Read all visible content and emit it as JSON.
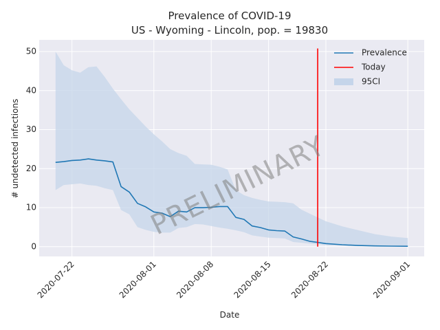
{
  "chart_data": {
    "type": "line",
    "title": "Prevalence of COVID-19",
    "subtitle": "US - Wyoming - Lincoln, pop. = 19830",
    "xlabel": "Date",
    "ylabel": "# undetected infections",
    "x_ticks": [
      "2020-07-22",
      "2020-08-01",
      "2020-08-08",
      "2020-08-15",
      "2020-08-22",
      "2020-09-01"
    ],
    "xlim": [
      "2020-07-18",
      "2020-09-03"
    ],
    "y_ticks": [
      "0",
      "10",
      "20",
      "30",
      "40",
      "50"
    ],
    "ylim": [
      -2.5,
      53
    ],
    "grid": true,
    "legend_position": "top-right",
    "legend": [
      "Prevalence",
      "Today",
      "95CI"
    ],
    "watermark": "PRELIMINARY",
    "colors": {
      "prevalence": "#1f77b4",
      "today": "#ff0000",
      "ci": "#c5d5ea",
      "background": "#eaeaf2",
      "grid": "#ffffff"
    },
    "today": "2020-08-21",
    "series": [
      {
        "name": "Prevalence",
        "x": [
          "2020-07-20",
          "2020-07-21",
          "2020-07-22",
          "2020-07-23",
          "2020-07-24",
          "2020-07-25",
          "2020-07-26",
          "2020-07-27",
          "2020-07-28",
          "2020-07-29",
          "2020-07-30",
          "2020-07-31",
          "2020-08-01",
          "2020-08-02",
          "2020-08-03",
          "2020-08-04",
          "2020-08-05",
          "2020-08-06",
          "2020-08-07",
          "2020-08-08",
          "2020-08-09",
          "2020-08-10",
          "2020-08-11",
          "2020-08-12",
          "2020-08-13",
          "2020-08-14",
          "2020-08-15",
          "2020-08-16",
          "2020-08-17",
          "2020-08-18",
          "2020-08-19",
          "2020-08-20",
          "2020-08-21",
          "2020-08-22",
          "2020-08-24",
          "2020-08-26",
          "2020-08-28",
          "2020-08-30",
          "2020-09-01"
        ],
        "y": [
          21.6,
          21.8,
          22.1,
          22.2,
          22.5,
          22.2,
          22.0,
          21.7,
          15.4,
          14.0,
          11.1,
          10.2,
          8.9,
          8.6,
          7.7,
          9.1,
          8.9,
          10.0,
          10.0,
          10.1,
          10.3,
          10.3,
          7.5,
          7.0,
          5.3,
          4.9,
          4.3,
          4.1,
          4.0,
          2.5,
          2.0,
          1.4,
          1.1,
          0.8,
          0.5,
          0.3,
          0.2,
          0.15,
          0.1
        ]
      },
      {
        "name": "95CI",
        "x": [
          "2020-07-20",
          "2020-07-21",
          "2020-07-22",
          "2020-07-23",
          "2020-07-24",
          "2020-07-25",
          "2020-07-26",
          "2020-07-27",
          "2020-07-28",
          "2020-07-29",
          "2020-07-30",
          "2020-07-31",
          "2020-08-01",
          "2020-08-02",
          "2020-08-03",
          "2020-08-04",
          "2020-08-05",
          "2020-08-06",
          "2020-08-07",
          "2020-08-08",
          "2020-08-09",
          "2020-08-10",
          "2020-08-11",
          "2020-08-12",
          "2020-08-13",
          "2020-08-14",
          "2020-08-15",
          "2020-08-16",
          "2020-08-17",
          "2020-08-18",
          "2020-08-19",
          "2020-08-20",
          "2020-08-21",
          "2020-08-22",
          "2020-08-24",
          "2020-08-26",
          "2020-08-28",
          "2020-08-30",
          "2020-09-01"
        ],
        "upper": [
          50.0,
          46.5,
          45.2,
          44.6,
          46.0,
          46.2,
          43.5,
          40.5,
          37.8,
          35.2,
          33.0,
          30.8,
          28.8,
          27.0,
          25.0,
          24.0,
          23.3,
          21.2,
          21.1,
          21.0,
          20.5,
          19.8,
          14.5,
          13.2,
          12.5,
          12.0,
          11.6,
          11.5,
          11.4,
          11.1,
          9.5,
          8.5,
          7.5,
          6.5,
          5.2,
          4.2,
          3.2,
          2.6,
          2.2
        ],
        "lower": [
          14.5,
          15.8,
          16.0,
          16.2,
          15.8,
          15.6,
          15.0,
          14.5,
          9.4,
          8.3,
          5.0,
          4.3,
          3.8,
          3.6,
          3.6,
          4.8,
          5.0,
          5.8,
          5.7,
          5.3,
          4.9,
          4.6,
          4.2,
          3.7,
          2.9,
          2.6,
          2.3,
          2.2,
          2.1,
          1.2,
          1.0,
          0.8,
          0.6,
          0.4,
          0.3,
          0.2,
          0.1,
          0.1,
          0.05
        ]
      }
    ]
  }
}
